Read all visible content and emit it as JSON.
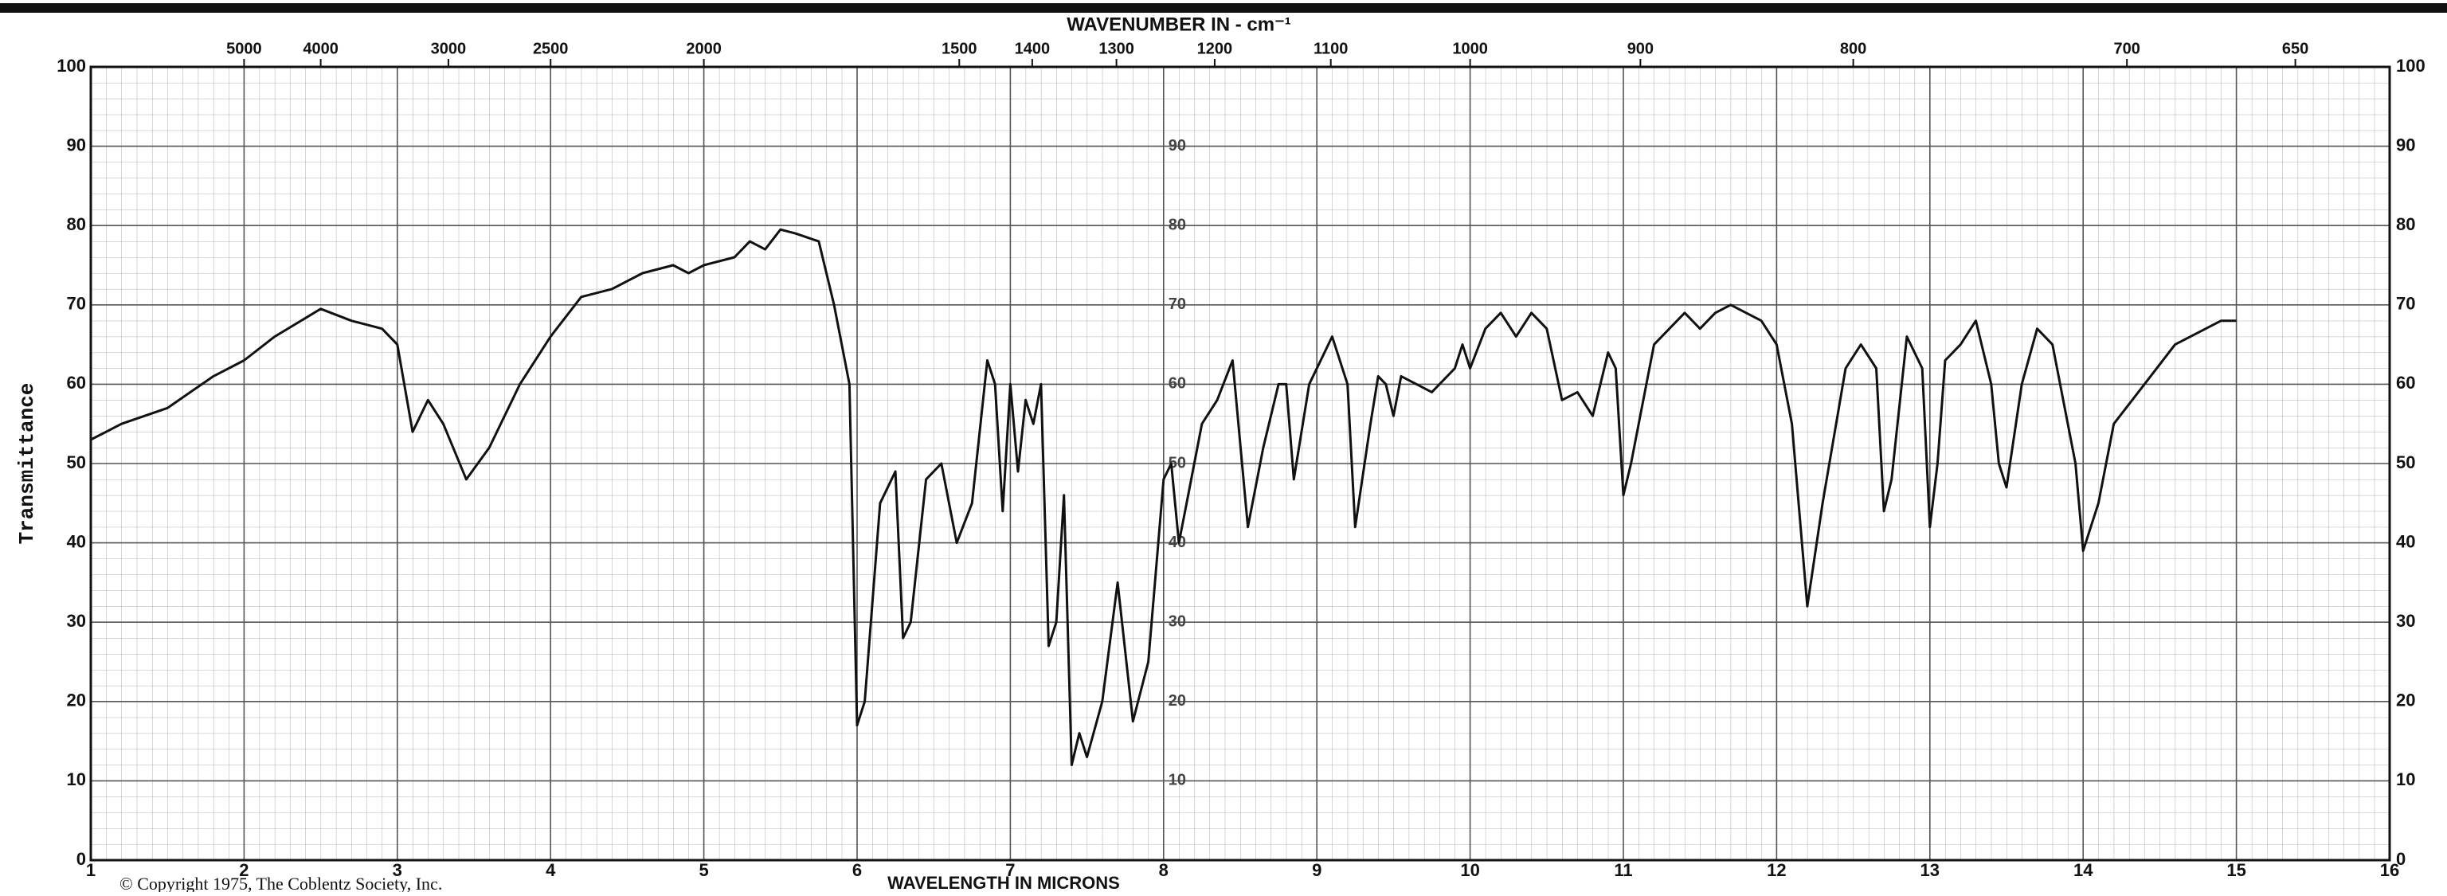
{
  "chart_data": {
    "type": "line",
    "title": "WAVENUMBER IN - cm⁻¹",
    "x_label": "WAVELENGTH IN MICRONS",
    "y_label": "Transmittance",
    "copyright": "© Copyright 1975, The Coblentz Society, Inc.",
    "color": "#111111",
    "xlim": [
      1,
      16
    ],
    "ylim": [
      0,
      100
    ],
    "xticks": [
      1,
      2,
      3,
      4,
      5,
      6,
      7,
      8,
      9,
      10,
      11,
      12,
      13,
      14,
      15,
      16
    ],
    "yticks": [
      0,
      10,
      20,
      30,
      40,
      50,
      60,
      70,
      80,
      90,
      100
    ],
    "x2_scale": "reciprocal",
    "x2ticks": [
      5000,
      4000,
      3000,
      2500,
      2000,
      1500,
      1400,
      1300,
      1200,
      1100,
      1000,
      900,
      800,
      700,
      650
    ],
    "grid": true,
    "x": [
      1.0,
      1.2,
      1.5,
      1.8,
      2.0,
      2.2,
      2.5,
      2.7,
      2.9,
      3.0,
      3.1,
      3.2,
      3.3,
      3.45,
      3.6,
      3.8,
      4.0,
      4.2,
      4.4,
      4.6,
      4.8,
      4.9,
      5.0,
      5.2,
      5.3,
      5.4,
      5.5,
      5.6,
      5.75,
      5.85,
      5.95,
      6.0,
      6.05,
      6.15,
      6.25,
      6.3,
      6.35,
      6.45,
      6.55,
      6.65,
      6.75,
      6.85,
      6.9,
      6.95,
      7.0,
      7.05,
      7.1,
      7.15,
      7.2,
      7.25,
      7.3,
      7.35,
      7.4,
      7.45,
      7.5,
      7.6,
      7.7,
      7.8,
      7.9,
      8.0,
      8.05,
      8.1,
      8.15,
      8.25,
      8.35,
      8.45,
      8.55,
      8.65,
      8.75,
      8.8,
      8.85,
      8.95,
      9.05,
      9.1,
      9.2,
      9.25,
      9.35,
      9.4,
      9.45,
      9.5,
      9.55,
      9.65,
      9.75,
      9.9,
      9.95,
      10.0,
      10.1,
      10.2,
      10.3,
      10.4,
      10.5,
      10.6,
      10.7,
      10.8,
      10.9,
      10.95,
      11.0,
      11.05,
      11.2,
      11.4,
      11.5,
      11.6,
      11.7,
      11.9,
      12.0,
      12.1,
      12.2,
      12.3,
      12.45,
      12.55,
      12.65,
      12.7,
      12.75,
      12.85,
      12.95,
      13.0,
      13.05,
      13.1,
      13.2,
      13.3,
      13.4,
      13.45,
      13.5,
      13.6,
      13.7,
      13.8,
      13.95,
      14.0,
      14.1,
      14.2,
      14.4,
      14.6,
      14.8,
      14.9,
      15.0
    ],
    "values": [
      53,
      55,
      57,
      61,
      63,
      66,
      69.5,
      68,
      67,
      65,
      54,
      58,
      55,
      48,
      52,
      60,
      66,
      71,
      72,
      74,
      75,
      74,
      75,
      76,
      78,
      77,
      79.5,
      79,
      78,
      70,
      60,
      17,
      20,
      45,
      49,
      28,
      30,
      48,
      50,
      40,
      45,
      63,
      60,
      44,
      60,
      49,
      58,
      55,
      60,
      27,
      30,
      46,
      12,
      16,
      13,
      20,
      35,
      17.5,
      25,
      48,
      50,
      40,
      45,
      55,
      58,
      63,
      42,
      52,
      60,
      60,
      48,
      60,
      64,
      66,
      60,
      42,
      55,
      61,
      60,
      56,
      61,
      60,
      59,
      62,
      65,
      62,
      67,
      69,
      66,
      69,
      67,
      58,
      59,
      56,
      64,
      62,
      46,
      50,
      65,
      69,
      67,
      69,
      70,
      68,
      65,
      55,
      32,
      45,
      62,
      65,
      62,
      44,
      48,
      66,
      62,
      42,
      50,
      63,
      65,
      68,
      60,
      50,
      47,
      60,
      67,
      65,
      50,
      39,
      45,
      55,
      60,
      65,
      67,
      68,
      68
    ]
  }
}
